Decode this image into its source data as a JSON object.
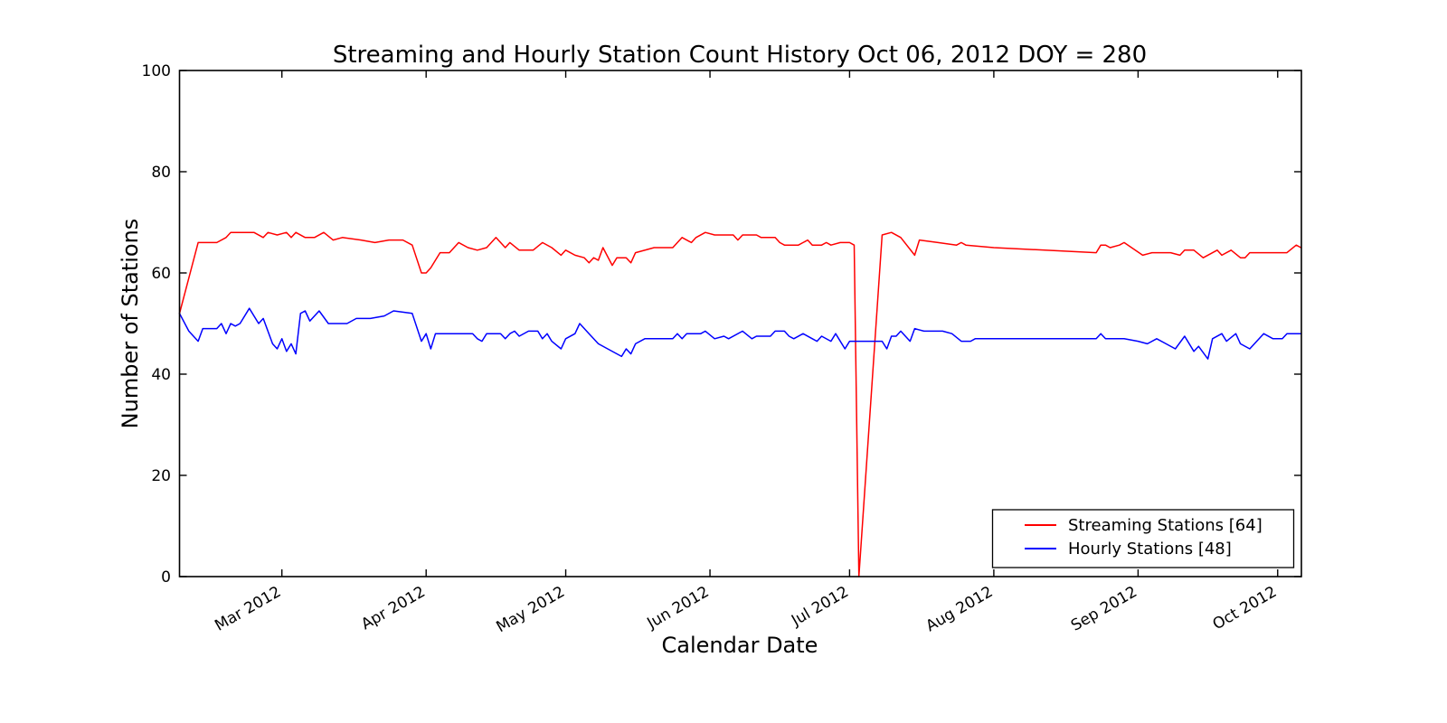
{
  "figure": {
    "background": "#ffffff",
    "frame_color": "#000000"
  },
  "chart_data": {
    "type": "line",
    "title": "Streaming and Hourly Station Count History Oct 06, 2012 DOY = 280",
    "xlabel": "Calendar Date",
    "ylabel": "Number of Stations",
    "grid": false,
    "tick_direction": "in",
    "x_unit": "day_of_year_2012",
    "xlim": [
      39,
      280.1
    ],
    "ylim": [
      0,
      100
    ],
    "y_ticks": [
      {
        "label": "0",
        "value": 0
      },
      {
        "label": "20",
        "value": 20
      },
      {
        "label": "40",
        "value": 40
      },
      {
        "label": "60",
        "value": 60
      },
      {
        "label": "80",
        "value": 80
      },
      {
        "label": "100",
        "value": 100
      }
    ],
    "x_ticks": [
      {
        "label": "Mar 2012",
        "doy": 61
      },
      {
        "label": "Apr 2012",
        "doy": 92
      },
      {
        "label": "May 2012",
        "doy": 122
      },
      {
        "label": "Jun 2012",
        "doy": 153
      },
      {
        "label": "Jul 2012",
        "doy": 183
      },
      {
        "label": "Aug 2012",
        "doy": 214
      },
      {
        "label": "Sep 2012",
        "doy": 245
      },
      {
        "label": "Oct 2012",
        "doy": 275
      }
    ],
    "legend": {
      "position": "lower right"
    },
    "series": [
      {
        "name": "Streaming Stations [64]",
        "color": "#ff0000",
        "points": [
          [
            39,
            52
          ],
          [
            43,
            66
          ],
          [
            47,
            66
          ],
          [
            49,
            67
          ],
          [
            50,
            68
          ],
          [
            55,
            68
          ],
          [
            57,
            67
          ],
          [
            58,
            68
          ],
          [
            60,
            67.5
          ],
          [
            62,
            68
          ],
          [
            63,
            67
          ],
          [
            64,
            68
          ],
          [
            66,
            67
          ],
          [
            68,
            67
          ],
          [
            70,
            68
          ],
          [
            72,
            66.5
          ],
          [
            74,
            67
          ],
          [
            78,
            66.5
          ],
          [
            81,
            66
          ],
          [
            84,
            66.5
          ],
          [
            87,
            66.5
          ],
          [
            89,
            65.5
          ],
          [
            91,
            60
          ],
          [
            92,
            60
          ],
          [
            93,
            61
          ],
          [
            95,
            64
          ],
          [
            97,
            64
          ],
          [
            99,
            66
          ],
          [
            101,
            65
          ],
          [
            103,
            64.5
          ],
          [
            105,
            65
          ],
          [
            107,
            67
          ],
          [
            109,
            65
          ],
          [
            110,
            66
          ],
          [
            112,
            64.5
          ],
          [
            115,
            64.5
          ],
          [
            117,
            66
          ],
          [
            119,
            65
          ],
          [
            121,
            63.5
          ],
          [
            122,
            64.5
          ],
          [
            124,
            63.5
          ],
          [
            126,
            63
          ],
          [
            127,
            62
          ],
          [
            128,
            63
          ],
          [
            129,
            62.5
          ],
          [
            130,
            65
          ],
          [
            132,
            61.5
          ],
          [
            133,
            63
          ],
          [
            135,
            63
          ],
          [
            136,
            62
          ],
          [
            137,
            64
          ],
          [
            141,
            65
          ],
          [
            145,
            65
          ],
          [
            147,
            67
          ],
          [
            149,
            66
          ],
          [
            150,
            67
          ],
          [
            152,
            68
          ],
          [
            154,
            67.5
          ],
          [
            158,
            67.5
          ],
          [
            159,
            66.5
          ],
          [
            160,
            67.5
          ],
          [
            163,
            67.5
          ],
          [
            164,
            67
          ],
          [
            167,
            67
          ],
          [
            168,
            66
          ],
          [
            169,
            65.5
          ],
          [
            172,
            65.5
          ],
          [
            173,
            66
          ],
          [
            174,
            66.5
          ],
          [
            175,
            65.5
          ],
          [
            177,
            65.5
          ],
          [
            178,
            66
          ],
          [
            179,
            65.5
          ],
          [
            181,
            66
          ],
          [
            183,
            66
          ],
          [
            184,
            65.5
          ],
          [
            185,
            0
          ],
          [
            190,
            67.5
          ],
          [
            192,
            68
          ],
          [
            194,
            67
          ],
          [
            197,
            63.5
          ],
          [
            198,
            66.5
          ],
          [
            202,
            66
          ],
          [
            206,
            65.5
          ],
          [
            207,
            66
          ],
          [
            208,
            65.5
          ],
          [
            214,
            65
          ],
          [
            236,
            64
          ],
          [
            237,
            65.5
          ],
          [
            238,
            65.5
          ],
          [
            239,
            65
          ],
          [
            241,
            65.5
          ],
          [
            242,
            66
          ],
          [
            246,
            63.5
          ],
          [
            248,
            64
          ],
          [
            252,
            64
          ],
          [
            254,
            63.5
          ],
          [
            255,
            64.5
          ],
          [
            257,
            64.5
          ],
          [
            259,
            63
          ],
          [
            262,
            64.5
          ],
          [
            263,
            63.5
          ],
          [
            265,
            64.5
          ],
          [
            267,
            63
          ],
          [
            268,
            63
          ],
          [
            269,
            64
          ],
          [
            277,
            64
          ],
          [
            279,
            65.5
          ],
          [
            280,
            65
          ]
        ]
      },
      {
        "name": "Hourly Stations [48]",
        "color": "#0000ff",
        "points": [
          [
            39,
            52
          ],
          [
            41,
            48.5
          ],
          [
            43,
            46.5
          ],
          [
            44,
            49
          ],
          [
            47,
            49
          ],
          [
            48,
            50
          ],
          [
            49,
            48
          ],
          [
            50,
            50
          ],
          [
            51,
            49.5
          ],
          [
            52,
            50
          ],
          [
            54,
            53
          ],
          [
            56,
            50
          ],
          [
            57,
            51
          ],
          [
            59,
            46
          ],
          [
            60,
            45
          ],
          [
            61,
            47
          ],
          [
            62,
            44.5
          ],
          [
            63,
            46
          ],
          [
            64,
            44
          ],
          [
            65,
            52
          ],
          [
            66,
            52.5
          ],
          [
            67,
            50.5
          ],
          [
            69,
            52.5
          ],
          [
            71,
            50
          ],
          [
            75,
            50
          ],
          [
            77,
            51
          ],
          [
            80,
            51
          ],
          [
            83,
            51.5
          ],
          [
            85,
            52.5
          ],
          [
            89,
            52
          ],
          [
            91,
            46.5
          ],
          [
            92,
            48
          ],
          [
            93,
            45
          ],
          [
            94,
            48
          ],
          [
            102,
            48
          ],
          [
            103,
            47
          ],
          [
            104,
            46.5
          ],
          [
            105,
            48
          ],
          [
            108,
            48
          ],
          [
            109,
            47
          ],
          [
            110,
            48
          ],
          [
            111,
            48.5
          ],
          [
            112,
            47.5
          ],
          [
            114,
            48.5
          ],
          [
            116,
            48.5
          ],
          [
            117,
            47
          ],
          [
            118,
            48
          ],
          [
            119,
            46.5
          ],
          [
            121,
            45
          ],
          [
            122,
            47
          ],
          [
            124,
            48
          ],
          [
            125,
            50
          ],
          [
            127,
            48
          ],
          [
            129,
            46
          ],
          [
            131,
            45
          ],
          [
            134,
            43.5
          ],
          [
            135,
            45
          ],
          [
            136,
            44
          ],
          [
            137,
            46
          ],
          [
            139,
            47
          ],
          [
            145,
            47
          ],
          [
            146,
            48
          ],
          [
            147,
            47
          ],
          [
            148,
            48
          ],
          [
            151,
            48
          ],
          [
            152,
            48.5
          ],
          [
            154,
            47
          ],
          [
            156,
            47.5
          ],
          [
            157,
            47
          ],
          [
            160,
            48.5
          ],
          [
            162,
            47
          ],
          [
            163,
            47.5
          ],
          [
            166,
            47.5
          ],
          [
            167,
            48.5
          ],
          [
            169,
            48.5
          ],
          [
            170,
            47.5
          ],
          [
            171,
            47
          ],
          [
            173,
            48
          ],
          [
            175,
            47
          ],
          [
            176,
            46.5
          ],
          [
            177,
            47.5
          ],
          [
            179,
            46.5
          ],
          [
            180,
            48
          ],
          [
            182,
            45
          ],
          [
            183,
            46.5
          ],
          [
            190,
            46.5
          ],
          [
            191,
            45
          ],
          [
            192,
            47.5
          ],
          [
            193,
            47.5
          ],
          [
            194,
            48.5
          ],
          [
            196,
            46.5
          ],
          [
            197,
            49
          ],
          [
            199,
            48.5
          ],
          [
            203,
            48.5
          ],
          [
            205,
            48
          ],
          [
            207,
            46.5
          ],
          [
            209,
            46.5
          ],
          [
            210,
            47
          ],
          [
            214,
            47
          ],
          [
            236,
            47
          ],
          [
            237,
            48
          ],
          [
            238,
            47
          ],
          [
            242,
            47
          ],
          [
            245,
            46.5
          ],
          [
            247,
            46
          ],
          [
            249,
            47
          ],
          [
            251,
            46
          ],
          [
            253,
            45
          ],
          [
            255,
            47.5
          ],
          [
            257,
            44.5
          ],
          [
            258,
            45.5
          ],
          [
            260,
            43
          ],
          [
            261,
            47
          ],
          [
            263,
            48
          ],
          [
            264,
            46.5
          ],
          [
            266,
            48
          ],
          [
            267,
            46
          ],
          [
            269,
            45
          ],
          [
            272,
            48
          ],
          [
            274,
            47
          ],
          [
            276,
            47
          ],
          [
            277,
            48
          ],
          [
            280,
            48
          ]
        ]
      }
    ]
  }
}
